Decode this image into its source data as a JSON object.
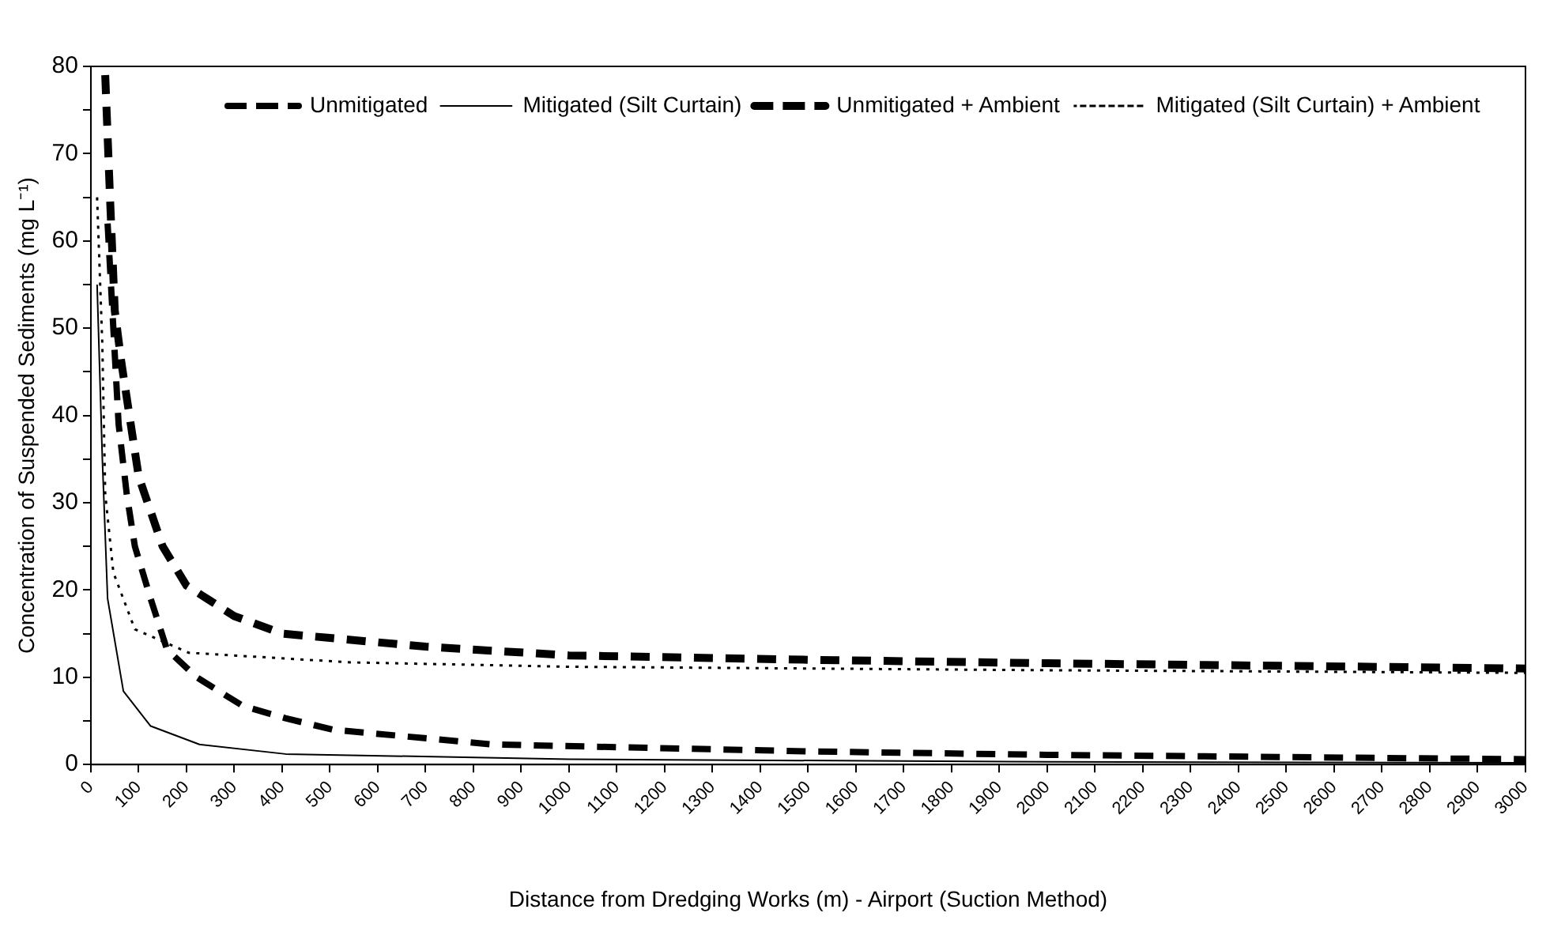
{
  "chart_data": {
    "type": "line",
    "xlabel": "Distance from Dredging Works (m) - Airport (Suction Method)",
    "ylabel": "Concentration of Suspended Sediments (mg L⁻¹)",
    "xlim": [
      0,
      3000
    ],
    "xticks": [
      0,
      100,
      200,
      300,
      400,
      500,
      600,
      700,
      800,
      900,
      1000,
      1100,
      1200,
      1300,
      1400,
      1500,
      1600,
      1700,
      1800,
      1900,
      2000,
      2100,
      2200,
      2300,
      2400,
      2500,
      2600,
      2700,
      2800,
      2900,
      3000
    ],
    "ylim": [
      0,
      80
    ],
    "yticks": [
      0,
      {
        "value": 5,
        "label": null
      },
      10,
      {
        "value": 15,
        "label": null
      },
      20,
      {
        "value": 25,
        "label": null
      },
      30,
      {
        "value": 35,
        "label": null
      },
      40,
      {
        "value": 45,
        "label": null
      },
      50,
      {
        "value": 55,
        "label": null
      },
      60,
      {
        "value": 65,
        "label": null
      },
      70,
      {
        "value": 75,
        "label": null
      },
      80
    ],
    "grid": false,
    "legend": "top right",
    "marker": "none",
    "series": [
      {
        "name": "Unmitigated",
        "color": "#000000",
        "line_style": "dashed",
        "x": [
          35,
          58,
          75,
          92,
          125,
          159,
          221,
          318,
          407,
          505,
          837,
          1500,
          2000,
          3000
        ],
        "values": [
          62,
          39,
          31,
          25,
          19,
          13.2,
          10,
          6.7,
          5.3,
          4,
          2.3,
          1.5,
          1.1,
          0.6
        ]
      },
      {
        "name": "Mitigated (Silt Curtain)",
        "color": "#000000",
        "line_style": "solid",
        "x": [
          13,
          24,
          35,
          68,
          125,
          227,
          407,
          1000,
          2000,
          3000
        ],
        "values": [
          55,
          35,
          19,
          8.4,
          4.4,
          2.3,
          1.2,
          0.6,
          0.3,
          0.2
        ]
      },
      {
        "name": "Unmitigated + Ambient",
        "color": "#000000",
        "line_style": "dashed",
        "x": [
          30,
          40,
          50,
          64,
          100,
          150,
          200,
          300,
          400,
          500,
          700,
          1000,
          1500,
          2000,
          3000
        ],
        "values": [
          79,
          65,
          52,
          46,
          33,
          25,
          20.5,
          17,
          15,
          14.5,
          13.5,
          12.5,
          12,
          11.6,
          11
        ]
      },
      {
        "name": "Mitigated (Silt Curtain) + Ambient",
        "color": "#000000",
        "line_style": "dotted",
        "x": [
          13,
          24,
          30,
          47,
          92,
          205,
          544,
          1000,
          2000,
          3000
        ],
        "values": [
          65,
          48,
          31,
          22,
          15.5,
          12.8,
          11.7,
          11.2,
          10.8,
          10.5
        ]
      }
    ]
  }
}
